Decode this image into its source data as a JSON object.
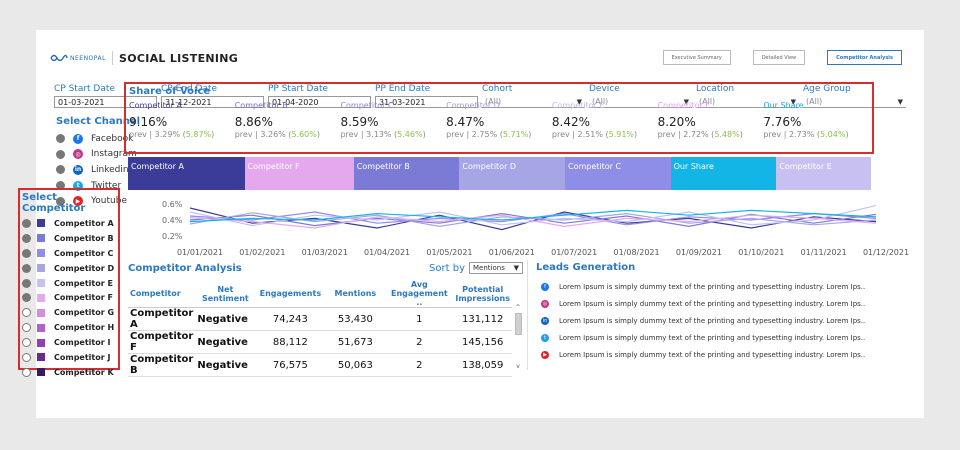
{
  "header": {
    "logo_text": "NEENOPAL",
    "title": "SOCIAL LISTENING",
    "nav": [
      "Executive Summary",
      "Detailed View",
      "Competitor Analysis"
    ]
  },
  "filters": [
    {
      "label": "CP Start Date",
      "value": "01-03-2021",
      "type": "date"
    },
    {
      "label": "CP End Date",
      "value": "31-12-2021",
      "type": "date"
    },
    {
      "label": "PP Start Date",
      "value": "01-04-2020",
      "type": "date"
    },
    {
      "label": "PP End Date",
      "value": "31-03-2021",
      "type": "date"
    },
    {
      "label": "Cohort",
      "value": "(All)",
      "type": "select"
    },
    {
      "label": "Device",
      "value": "(All)",
      "type": "select"
    },
    {
      "label": "Location",
      "value": "(All)",
      "type": "select"
    },
    {
      "label": "Age Group",
      "value": "(All)",
      "type": "select"
    }
  ],
  "channels": {
    "title": "Select Channel",
    "items": [
      {
        "label": "Facebook",
        "icon": "facebook-icon",
        "color": "#1877f2",
        "glyph": "f"
      },
      {
        "label": "Instagram",
        "icon": "instagram-icon",
        "color": "#c13584",
        "glyph": "◎"
      },
      {
        "label": "Linkedin",
        "icon": "linkedin-icon",
        "color": "#0a66c2",
        "glyph": "in"
      },
      {
        "label": "Twitter",
        "icon": "twitter-icon",
        "color": "#1da1f2",
        "glyph": "t"
      },
      {
        "label": "Youtube",
        "icon": "youtube-icon",
        "color": "#e02424",
        "glyph": "▶"
      }
    ]
  },
  "competitors": {
    "title": "Select Competitor",
    "items": [
      {
        "label": "Competitor A",
        "color": "#3b3b98",
        "selected": true
      },
      {
        "label": "Competitor B",
        "color": "#7b7bd6",
        "selected": true
      },
      {
        "label": "Competitor C",
        "color": "#8e8ee8",
        "selected": true
      },
      {
        "label": "Competitor D",
        "color": "#a6a6e6",
        "selected": true
      },
      {
        "label": "Competitor E",
        "color": "#c7c0f0",
        "selected": true
      },
      {
        "label": "Competitor F",
        "color": "#e5a8ee",
        "selected": true
      },
      {
        "label": "Competitor G",
        "color": "#d48be0",
        "selected": false
      },
      {
        "label": "Competitor H",
        "color": "#b65fd0",
        "selected": false
      },
      {
        "label": "Competitor I",
        "color": "#8e3fb0",
        "selected": false
      },
      {
        "label": "Competitor J",
        "color": "#6a2b8e",
        "selected": false
      },
      {
        "label": "Competitor K",
        "color": "#3a1860",
        "selected": false
      }
    ]
  },
  "share_of_voice": {
    "title": "Share of Voice",
    "items": [
      {
        "name": "Competitor A",
        "color": "#3b3b98",
        "value": "9.16%",
        "prev": "prev | 3.29% (",
        "change": "5.87%",
        "close": ")"
      },
      {
        "name": "Competitor B",
        "color": "#6f6fc4",
        "value": "8.86%",
        "prev": "prev | 3.26% (",
        "change": "5.60%",
        "close": ")"
      },
      {
        "name": "Competitor C",
        "color": "#8585dd",
        "value": "8.59%",
        "prev": "prev | 3.13% (",
        "change": "5.46%",
        "close": ")"
      },
      {
        "name": "Competitor D",
        "color": "#9c9ce0",
        "value": "8.47%",
        "prev": "prev | 2.75% (",
        "change": "5.71%",
        "close": ")"
      },
      {
        "name": "Competitor E",
        "color": "#c0b8ef",
        "value": "8.42%",
        "prev": "prev | 2.51% (",
        "change": "5.91%",
        "close": ")"
      },
      {
        "name": "Competitor F",
        "color": "#e3a2ec",
        "value": "8.20%",
        "prev": "prev | 2.72% (",
        "change": "5.48%",
        "close": ")"
      },
      {
        "name": "Our Share",
        "color": "#16a6d8",
        "value": "7.76%",
        "prev": "prev | 2.73% (",
        "change": "5.04%",
        "close": ")"
      }
    ]
  },
  "strip": [
    {
      "label": "Competitor A",
      "color": "#3b3b98",
      "value": 16
    },
    {
      "label": "Competitor F",
      "color": "#e5a8ee",
      "value": 15
    },
    {
      "label": "Competitor B",
      "color": "#7b7bd6",
      "value": 14.5
    },
    {
      "label": "Competitor D",
      "color": "#a6a6e6",
      "value": 14.5
    },
    {
      "label": "Competitor C",
      "color": "#8e8ee8",
      "value": 14.5
    },
    {
      "label": "Our Share",
      "color": "#12b5e6",
      "value": 14.5
    },
    {
      "label": "Competitor E",
      "color": "#c7c0f0",
      "value": 13
    }
  ],
  "chart_data": {
    "type": "line",
    "x": [
      "01/01/2021",
      "01/02/2021",
      "01/03/2021",
      "01/04/2021",
      "01/05/2021",
      "01/06/2021",
      "01/07/2021",
      "01/08/2021",
      "01/09/2021",
      "01/10/2021",
      "01/11/2021",
      "01/12/2021"
    ],
    "yticks": [
      "0.6%",
      "0.4%",
      "0.2%"
    ],
    "ylim": [
      0.1,
      0.7
    ],
    "series": [
      {
        "color": "#3b3b98",
        "values": [
          0.55,
          0.36,
          0.42,
          0.3,
          0.46,
          0.28,
          0.5,
          0.36,
          0.42,
          0.3,
          0.44,
          0.38
        ]
      },
      {
        "color": "#7b7bd6",
        "values": [
          0.4,
          0.46,
          0.33,
          0.42,
          0.36,
          0.48,
          0.36,
          0.45,
          0.32,
          0.47,
          0.36,
          0.47
        ]
      },
      {
        "color": "#8e8ee8",
        "values": [
          0.45,
          0.4,
          0.5,
          0.36,
          0.42,
          0.38,
          0.48,
          0.34,
          0.44,
          0.4,
          0.48,
          0.42
        ]
      },
      {
        "color": "#a6a6e6",
        "values": [
          0.35,
          0.49,
          0.38,
          0.46,
          0.32,
          0.44,
          0.4,
          0.48,
          0.36,
          0.42,
          0.34,
          0.4
        ]
      },
      {
        "color": "#c7c0f0",
        "values": [
          0.5,
          0.33,
          0.46,
          0.4,
          0.5,
          0.34,
          0.42,
          0.38,
          0.5,
          0.34,
          0.4,
          0.58
        ]
      },
      {
        "color": "#e5a8ee",
        "values": [
          0.43,
          0.38,
          0.3,
          0.44,
          0.38,
          0.46,
          0.32,
          0.42,
          0.38,
          0.46,
          0.42,
          0.36
        ]
      },
      {
        "color": "#12b5e6",
        "values": [
          0.38,
          0.42,
          0.4,
          0.48,
          0.44,
          0.4,
          0.46,
          0.52,
          0.46,
          0.52,
          0.48,
          0.44
        ]
      }
    ]
  },
  "competitor_analysis": {
    "title": "Competitor Analysis",
    "sort_label": "Sort by",
    "sort_value": "Mentions",
    "columns": [
      "Competitor",
      "Net Sentiment",
      "Engagements",
      "Mentions",
      "Avg Engagement ..",
      "Potential Impressions"
    ],
    "rows": [
      [
        "Competitor A",
        "Negative",
        "74,243",
        "53,430",
        "1",
        "131,112"
      ],
      [
        "Competitor F",
        "Negative",
        "88,112",
        "51,673",
        "2",
        "145,156"
      ],
      [
        "Competitor B",
        "Negative",
        "76,575",
        "50,063",
        "2",
        "138,059"
      ]
    ]
  },
  "leads": {
    "title": "Leads Generation",
    "items": [
      {
        "text": "Lorem Ipsum is simply dummy text of the printing and typesetting industry. Lorem Ips..",
        "icon": "facebook-icon",
        "color": "#1877f2",
        "glyph": "f"
      },
      {
        "text": "Lorem Ipsum is simply dummy text of the printing and typesetting industry. Lorem Ips..",
        "icon": "instagram-icon",
        "color": "#c13584",
        "glyph": "◎"
      },
      {
        "text": "Lorem Ipsum is simply dummy text of the printing and typesetting industry. Lorem Ips..",
        "icon": "linkedin-icon",
        "color": "#0a66c2",
        "glyph": "in"
      },
      {
        "text": "Lorem Ipsum is simply dummy text of the printing and typesetting industry. Lorem Ips..",
        "icon": "twitter-icon",
        "color": "#1da1f2",
        "glyph": "t"
      },
      {
        "text": "Lorem Ipsum is simply dummy text of the printing and typesetting industry. Lorem Ips..",
        "icon": "youtube-icon",
        "color": "#e02424",
        "glyph": "▶"
      }
    ]
  }
}
